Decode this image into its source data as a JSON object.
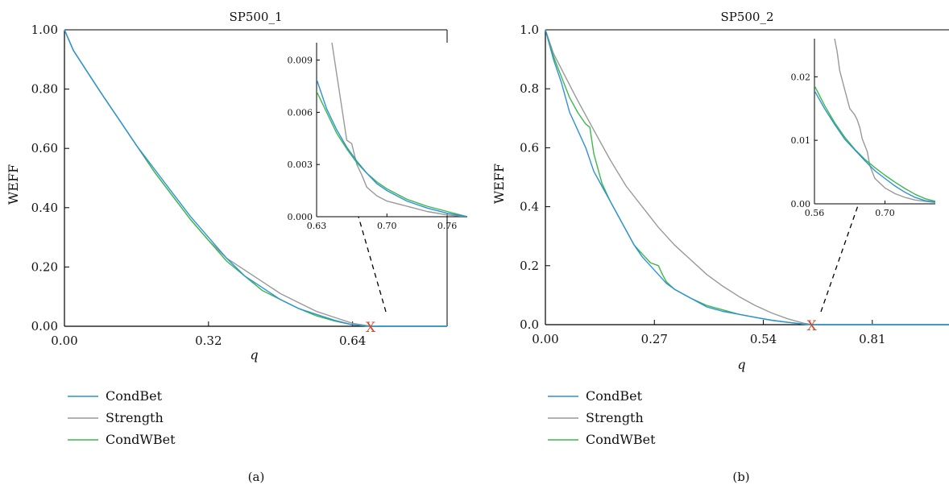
{
  "chart_data": [
    {
      "type": "line",
      "panel_caption": "(a)",
      "title": "SP500_1",
      "xlabel": "q",
      "ylabel": "WEFF",
      "xlim": [
        0,
        0.85
      ],
      "ylim": [
        0,
        1
      ],
      "xticks": [
        "0.00",
        "0.32",
        "0.64"
      ],
      "xtick_values": [
        0,
        0.32,
        0.64
      ],
      "yticks": [
        "0.00",
        "0.20",
        "0.40",
        "0.60",
        "0.80",
        "1.00"
      ],
      "ytick_values": [
        0,
        0.2,
        0.4,
        0.6,
        0.8,
        1.0
      ],
      "marker": {
        "label": "X",
        "x": 0.68,
        "y": 0,
        "color": "#d9472b"
      },
      "legend": [
        "CondBet",
        "Strength",
        "CondWBet"
      ],
      "series": [
        {
          "name": "CondBet",
          "color": "#2e91d9",
          "x": [
            0,
            0.02,
            0.05,
            0.08,
            0.12,
            0.16,
            0.2,
            0.24,
            0.28,
            0.32,
            0.36,
            0.4,
            0.44,
            0.48,
            0.52,
            0.56,
            0.6,
            0.64,
            0.68,
            0.85
          ],
          "y": [
            1.0,
            0.93,
            0.86,
            0.79,
            0.7,
            0.61,
            0.53,
            0.45,
            0.37,
            0.3,
            0.23,
            0.17,
            0.13,
            0.09,
            0.06,
            0.04,
            0.02,
            0.005,
            0.0,
            0.0
          ]
        },
        {
          "name": "Strength",
          "color": "#999999",
          "x": [
            0,
            0.02,
            0.05,
            0.08,
            0.12,
            0.16,
            0.2,
            0.24,
            0.28,
            0.32,
            0.36,
            0.4,
            0.44,
            0.48,
            0.52,
            0.56,
            0.6,
            0.64,
            0.68,
            0.85
          ],
          "y": [
            1.0,
            0.93,
            0.86,
            0.79,
            0.7,
            0.61,
            0.52,
            0.44,
            0.36,
            0.29,
            0.23,
            0.19,
            0.15,
            0.11,
            0.08,
            0.05,
            0.03,
            0.01,
            0.0,
            0.0
          ]
        },
        {
          "name": "CondWBet",
          "color": "#3cb84a",
          "x": [
            0,
            0.02,
            0.05,
            0.08,
            0.12,
            0.16,
            0.2,
            0.24,
            0.28,
            0.32,
            0.36,
            0.4,
            0.44,
            0.48,
            0.52,
            0.56,
            0.6,
            0.64,
            0.68,
            0.85
          ],
          "y": [
            1.0,
            0.93,
            0.86,
            0.79,
            0.7,
            0.61,
            0.52,
            0.44,
            0.36,
            0.29,
            0.22,
            0.17,
            0.12,
            0.09,
            0.06,
            0.035,
            0.018,
            0.005,
            0.0,
            0.0
          ]
        }
      ],
      "inset": {
        "xlim": [
          0.63,
          0.78
        ],
        "ylim": [
          0,
          0.01
        ],
        "xticks": [
          "0.63",
          "0.70",
          "0.76"
        ],
        "xtick_values": [
          0.63,
          0.7,
          0.76
        ],
        "yticks": [
          "0.000",
          "0.003",
          "0.006",
          "0.009"
        ],
        "ytick_values": [
          0,
          0.003,
          0.006,
          0.009
        ],
        "series": [
          {
            "name": "CondBet",
            "x": [
              0.63,
              0.64,
              0.65,
              0.66,
              0.67,
              0.68,
              0.69,
              0.7,
              0.72,
              0.74,
              0.76,
              0.78
            ],
            "y": [
              0.0079,
              0.0062,
              0.005,
              0.004,
              0.0032,
              0.0025,
              0.0019,
              0.0015,
              0.0009,
              0.0005,
              0.0002,
              0.0
            ]
          },
          {
            "name": "Strength",
            "x": [
              0.645,
              0.65,
              0.655,
              0.66,
              0.665,
              0.67,
              0.675,
              0.68,
              0.69,
              0.7,
              0.72,
              0.74,
              0.76,
              0.78
            ],
            "y": [
              0.0101,
              0.0082,
              0.0063,
              0.0044,
              0.0042,
              0.003,
              0.0024,
              0.0017,
              0.0012,
              0.0009,
              0.0006,
              0.0003,
              0.0001,
              0.0
            ]
          },
          {
            "name": "CondWBet",
            "x": [
              0.63,
              0.64,
              0.65,
              0.66,
              0.67,
              0.68,
              0.69,
              0.7,
              0.72,
              0.74,
              0.76,
              0.78
            ],
            "y": [
              0.0072,
              0.006,
              0.0048,
              0.0039,
              0.0031,
              0.0025,
              0.002,
              0.0016,
              0.001,
              0.0006,
              0.0003,
              0.0
            ]
          }
        ]
      }
    },
    {
      "type": "line",
      "panel_caption": "(b)",
      "title": "SP500_2",
      "xlabel": "q",
      "ylabel": "WEFF",
      "xlim": [
        0,
        1.0
      ],
      "ylim": [
        0,
        1
      ],
      "xticks": [
        "0.00",
        "0.27",
        "0.54",
        "0.81"
      ],
      "xtick_values": [
        0,
        0.27,
        0.54,
        0.81
      ],
      "yticks": [
        "0.0",
        "0.2",
        "0.4",
        "0.6",
        "0.8",
        "1.0"
      ],
      "ytick_values": [
        0,
        0.2,
        0.4,
        0.6,
        0.8,
        1.0
      ],
      "marker": {
        "label": "X",
        "x": 0.66,
        "y": 0,
        "color": "#d9472b"
      },
      "legend": [
        "CondBet",
        "Strength",
        "CondWBet"
      ],
      "series": [
        {
          "name": "CondBet",
          "color": "#2e91d9",
          "x": [
            0,
            0.02,
            0.04,
            0.06,
            0.08,
            0.1,
            0.12,
            0.14,
            0.16,
            0.18,
            0.2,
            0.22,
            0.24,
            0.26,
            0.28,
            0.3,
            0.32,
            0.36,
            0.4,
            0.44,
            0.48,
            0.52,
            0.56,
            0.6,
            0.64,
            0.66,
            1.0
          ],
          "y": [
            1.0,
            0.9,
            0.82,
            0.72,
            0.66,
            0.6,
            0.52,
            0.47,
            0.42,
            0.37,
            0.32,
            0.27,
            0.23,
            0.2,
            0.17,
            0.14,
            0.12,
            0.09,
            0.06,
            0.045,
            0.035,
            0.025,
            0.015,
            0.008,
            0.002,
            0.0,
            0.0
          ]
        },
        {
          "name": "Strength",
          "color": "#999999",
          "x": [
            0,
            0.02,
            0.05,
            0.08,
            0.12,
            0.16,
            0.2,
            0.24,
            0.28,
            0.32,
            0.36,
            0.4,
            0.44,
            0.48,
            0.52,
            0.56,
            0.6,
            0.64,
            0.66,
            1.0
          ],
          "y": [
            1.0,
            0.92,
            0.84,
            0.76,
            0.66,
            0.56,
            0.47,
            0.4,
            0.33,
            0.27,
            0.22,
            0.17,
            0.13,
            0.095,
            0.065,
            0.04,
            0.02,
            0.005,
            0.0,
            0.0
          ]
        },
        {
          "name": "CondWBet",
          "color": "#3cb84a",
          "x": [
            0,
            0.02,
            0.04,
            0.06,
            0.08,
            0.1,
            0.11,
            0.12,
            0.14,
            0.16,
            0.18,
            0.2,
            0.22,
            0.24,
            0.26,
            0.28,
            0.29,
            0.3,
            0.32,
            0.36,
            0.4,
            0.44,
            0.48,
            0.52,
            0.56,
            0.6,
            0.64,
            0.66,
            1.0
          ],
          "y": [
            1.0,
            0.91,
            0.84,
            0.77,
            0.72,
            0.68,
            0.67,
            0.58,
            0.48,
            0.42,
            0.37,
            0.32,
            0.27,
            0.24,
            0.21,
            0.2,
            0.17,
            0.145,
            0.12,
            0.09,
            0.065,
            0.05,
            0.035,
            0.025,
            0.015,
            0.008,
            0.002,
            0.0,
            0.0
          ]
        }
      ],
      "inset": {
        "xlim": [
          0.56,
          0.8
        ],
        "ylim": [
          0,
          0.026
        ],
        "xticks": [
          "0.56",
          "0.70"
        ],
        "xtick_values": [
          0.56,
          0.7
        ],
        "yticks": [
          "0.00",
          "0.01",
          "0.02"
        ],
        "ytick_values": [
          0,
          0.01,
          0.02
        ],
        "series": [
          {
            "name": "CondBet",
            "x": [
              0.56,
              0.58,
              0.6,
              0.62,
              0.64,
              0.66,
              0.68,
              0.7,
              0.72,
              0.74,
              0.76,
              0.78,
              0.8
            ],
            "y": [
              0.0178,
              0.015,
              0.0125,
              0.0102,
              0.0085,
              0.0068,
              0.0052,
              0.004,
              0.0028,
              0.0018,
              0.001,
              0.0005,
              0.0003
            ]
          },
          {
            "name": "Strength",
            "x": [
              0.6,
              0.605,
              0.61,
              0.62,
              0.63,
              0.64,
              0.645,
              0.65,
              0.655,
              0.66,
              0.665,
              0.67,
              0.68,
              0.7,
              0.72,
              0.74,
              0.76,
              0.8
            ],
            "y": [
              0.026,
              0.024,
              0.021,
              0.018,
              0.015,
              0.014,
              0.0132,
              0.012,
              0.0102,
              0.0092,
              0.0082,
              0.006,
              0.004,
              0.0025,
              0.0016,
              0.001,
              0.0006,
              0.0002
            ]
          },
          {
            "name": "CondWBet",
            "x": [
              0.56,
              0.58,
              0.6,
              0.62,
              0.64,
              0.66,
              0.68,
              0.7,
              0.72,
              0.74,
              0.76,
              0.78,
              0.8
            ],
            "y": [
              0.0186,
              0.0155,
              0.0128,
              0.0105,
              0.0086,
              0.007,
              0.0057,
              0.0045,
              0.0034,
              0.0024,
              0.0015,
              0.0008,
              0.0004
            ]
          }
        ]
      }
    }
  ]
}
